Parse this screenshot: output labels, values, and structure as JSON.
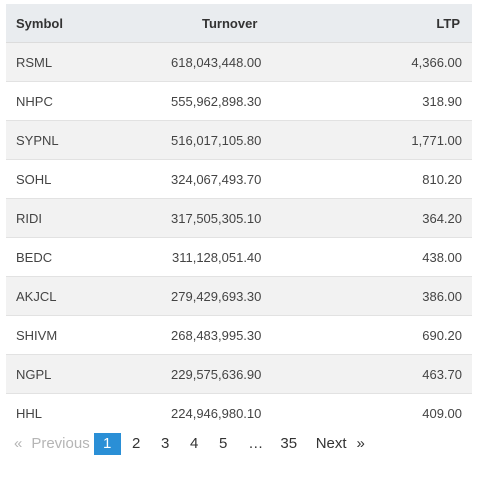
{
  "table": {
    "headers": {
      "symbol": "Symbol",
      "turnover": "Turnover",
      "ltp": "LTP"
    },
    "rows": [
      {
        "symbol": "RSML",
        "turnover": "618,043,448.00",
        "ltp": "4,366.00"
      },
      {
        "symbol": "NHPC",
        "turnover": "555,962,898.30",
        "ltp": "318.90"
      },
      {
        "symbol": "SYPNL",
        "turnover": "516,017,105.80",
        "ltp": "1,771.00"
      },
      {
        "symbol": "SOHL",
        "turnover": "324,067,493.70",
        "ltp": "810.20"
      },
      {
        "symbol": "RIDI",
        "turnover": "317,505,305.10",
        "ltp": "364.20"
      },
      {
        "symbol": "BEDC",
        "turnover": "311,128,051.40",
        "ltp": "438.00"
      },
      {
        "symbol": "AKJCL",
        "turnover": "279,429,693.30",
        "ltp": "386.00"
      },
      {
        "symbol": "SHIVM",
        "turnover": "268,483,995.30",
        "ltp": "690.20"
      },
      {
        "symbol": "NGPL",
        "turnover": "229,575,636.90",
        "ltp": "463.70"
      },
      {
        "symbol": "HHL",
        "turnover": "224,946,980.10",
        "ltp": "409.00"
      }
    ]
  },
  "pagination": {
    "prev_arrow": "«",
    "prev_label": "Previous",
    "pages": [
      "1",
      "2",
      "3",
      "4",
      "5"
    ],
    "current_page": "1",
    "ellipsis": "…",
    "last_page": "35",
    "next_label": "Next",
    "next_arrow": "»"
  },
  "colors": {
    "header_bg": "#e9ecef",
    "stripe_bg": "#f2f2f2",
    "active_page_bg": "#2a8fd6",
    "disabled_text": "#b5b5b5"
  }
}
